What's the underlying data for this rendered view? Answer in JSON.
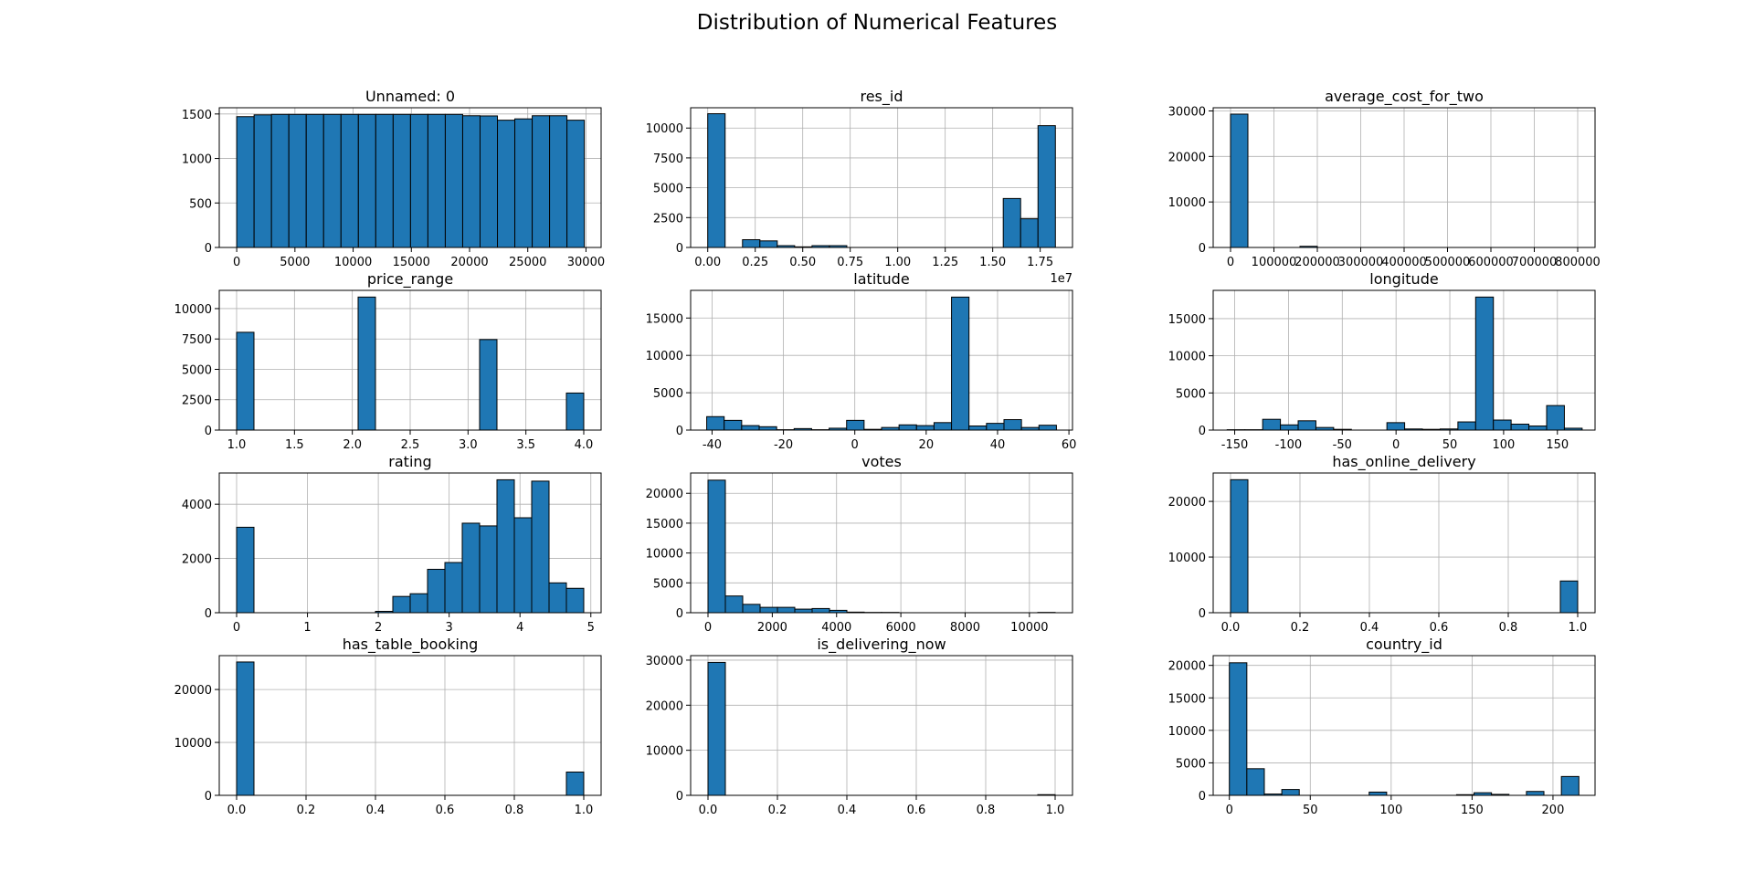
{
  "figure": {
    "title": "Distribution of Numerical Features"
  },
  "style": {
    "bar_fill": "#1f77b4",
    "bar_edge": "#000000",
    "grid": "#b0b0b0"
  },
  "chart_data": [
    {
      "type": "bar",
      "title": "Unnamed: 0",
      "grid": true,
      "xlim": [
        -1500,
        31300
      ],
      "ylim": [
        0,
        1570
      ],
      "xticks": [
        0,
        5000,
        10000,
        15000,
        20000,
        25000,
        30000
      ],
      "yticks": [
        0,
        500,
        1000,
        1500
      ],
      "bins_start": 0,
      "bin_width": 1493,
      "values": [
        1470,
        1490,
        1495,
        1495,
        1495,
        1495,
        1495,
        1495,
        1495,
        1495,
        1495,
        1495,
        1495,
        1480,
        1478,
        1430,
        1445,
        1480,
        1480,
        1430
      ]
    },
    {
      "type": "bar",
      "title": "res_id",
      "grid": true,
      "scale_label": "1e7",
      "xlim": [
        -900000,
        19200000
      ],
      "ylim": [
        0,
        11700
      ],
      "xticks": [
        0,
        2500000,
        5000000,
        7500000,
        10000000,
        12500000,
        15000000,
        17500000
      ],
      "xtick_labels": [
        "0.00",
        "0.25",
        "0.50",
        "0.75",
        "1.00",
        "1.25",
        "1.50",
        "1.75"
      ],
      "yticks": [
        0,
        2500,
        5000,
        7500,
        10000
      ],
      "bins_start": 0,
      "bin_width": 915000,
      "values": [
        11200,
        0,
        650,
        550,
        150,
        50,
        150,
        150,
        0,
        0,
        0,
        0,
        0,
        0,
        0,
        0,
        0,
        4100,
        2400,
        10200
      ]
    },
    {
      "type": "bar",
      "title": "average_cost_for_two",
      "grid": true,
      "xlim": [
        -40000,
        840000
      ],
      "ylim": [
        0,
        30700
      ],
      "xticks": [
        0,
        100000,
        200000,
        300000,
        400000,
        500000,
        600000,
        700000,
        800000
      ],
      "yticks": [
        0,
        10000,
        20000,
        30000
      ],
      "bins_start": 0,
      "bin_width": 40000,
      "values": [
        29300,
        0,
        0,
        0,
        250,
        0,
        0,
        0,
        0,
        0,
        0,
        0,
        0,
        0,
        0,
        0,
        0,
        0,
        0,
        0
      ]
    },
    {
      "type": "bar",
      "title": "price_range",
      "grid": true,
      "xlim": [
        -0.15,
        2.15
      ],
      "xlim_note": "scaled",
      "xlim_data": [
        0.85,
        4.15
      ],
      "ylim": [
        0,
        11500
      ],
      "xticks": [
        1.0,
        1.5,
        2.0,
        2.5,
        3.0,
        3.5,
        4.0
      ],
      "xtick_labels": [
        "1.0",
        "1.5",
        "2.0",
        "2.5",
        "3.0",
        "3.5",
        "4.0"
      ],
      "yticks": [
        0,
        2500,
        5000,
        7500,
        10000
      ],
      "bins_start": 1.0,
      "bin_width": 0.15,
      "values": [
        8050,
        0,
        0,
        0,
        0,
        0,
        0,
        10950,
        0,
        0,
        0,
        0,
        0,
        0,
        7450,
        0,
        0,
        0,
        0,
        3050
      ]
    },
    {
      "type": "bar",
      "title": "latitude",
      "grid": true,
      "xlim": [
        -46,
        61
      ],
      "ylim": [
        0,
        18700
      ],
      "xticks": [
        -40,
        -20,
        0,
        20,
        40,
        60
      ],
      "yticks": [
        0,
        5000,
        10000,
        15000
      ],
      "bins_start": -41.5,
      "bin_width": 4.9,
      "values": [
        1800,
        1300,
        600,
        450,
        50,
        200,
        50,
        250,
        1300,
        100,
        350,
        700,
        600,
        1000,
        17800,
        550,
        900,
        1400,
        350,
        650
      ]
    },
    {
      "type": "bar",
      "title": "longitude",
      "grid": true,
      "xlim": [
        -170,
        185
      ],
      "ylim": [
        0,
        18800
      ],
      "xticks": [
        -150,
        -100,
        -50,
        0,
        50,
        100,
        150
      ],
      "yticks": [
        0,
        5000,
        10000,
        15000
      ],
      "bins_start": -157,
      "bin_width": 16.5,
      "values": [
        50,
        50,
        1450,
        700,
        1250,
        350,
        100,
        0,
        0,
        1000,
        150,
        100,
        150,
        1100,
        17900,
        1350,
        800,
        550,
        3300,
        250
      ]
    },
    {
      "type": "bar",
      "title": "rating",
      "grid": true,
      "xlim": [
        -0.245,
        5.145
      ],
      "ylim": [
        0,
        5150
      ],
      "xticks": [
        0,
        1,
        2,
        3,
        4,
        5
      ],
      "yticks": [
        0,
        2000,
        4000
      ],
      "bins_start": 0,
      "bin_width": 0.245,
      "values": [
        3150,
        0,
        0,
        0,
        0,
        0,
        0,
        0,
        50,
        600,
        700,
        1600,
        1850,
        3300,
        3200,
        4900,
        3500,
        4850,
        1100,
        900
      ]
    },
    {
      "type": "bar",
      "title": "votes",
      "grid": true,
      "xlim": [
        -540,
        11340
      ],
      "ylim": [
        0,
        23400
      ],
      "xticks": [
        0,
        2000,
        4000,
        6000,
        8000,
        10000
      ],
      "yticks": [
        0,
        5000,
        10000,
        15000,
        20000
      ],
      "bins_start": 0,
      "bin_width": 540,
      "values": [
        22200,
        2800,
        1400,
        900,
        900,
        600,
        700,
        400,
        100,
        50,
        50,
        0,
        0,
        0,
        0,
        0,
        0,
        0,
        0,
        50
      ]
    },
    {
      "type": "bar",
      "title": "has_online_delivery",
      "grid": true,
      "xlim": [
        -0.05,
        1.05
      ],
      "ylim": [
        0,
        25100
      ],
      "xticks": [
        0.0,
        0.2,
        0.4,
        0.6,
        0.8,
        1.0
      ],
      "xtick_labels": [
        "0.0",
        "0.2",
        "0.4",
        "0.6",
        "0.8",
        "1.0"
      ],
      "yticks": [
        0,
        10000,
        20000
      ],
      "bins_start": 0,
      "bin_width": 0.05,
      "values": [
        23900,
        0,
        0,
        0,
        0,
        0,
        0,
        0,
        0,
        0,
        0,
        0,
        0,
        0,
        0,
        0,
        0,
        0,
        0,
        5700
      ]
    },
    {
      "type": "bar",
      "title": "has_table_booking",
      "grid": true,
      "xlim": [
        -0.05,
        1.05
      ],
      "ylim": [
        0,
        26400
      ],
      "xticks": [
        0.0,
        0.2,
        0.4,
        0.6,
        0.8,
        1.0
      ],
      "xtick_labels": [
        "0.0",
        "0.2",
        "0.4",
        "0.6",
        "0.8",
        "1.0"
      ],
      "yticks": [
        0,
        10000,
        20000
      ],
      "bins_start": 0,
      "bin_width": 0.05,
      "values": [
        25200,
        0,
        0,
        0,
        0,
        0,
        0,
        0,
        0,
        0,
        0,
        0,
        0,
        0,
        0,
        0,
        0,
        0,
        0,
        4400
      ]
    },
    {
      "type": "bar",
      "title": "is_delivering_now",
      "grid": true,
      "xlim": [
        -0.05,
        1.05
      ],
      "ylim": [
        0,
        31000
      ],
      "xticks": [
        0.0,
        0.2,
        0.4,
        0.6,
        0.8,
        1.0
      ],
      "xtick_labels": [
        "0.0",
        "0.2",
        "0.4",
        "0.6",
        "0.8",
        "1.0"
      ],
      "yticks": [
        0,
        10000,
        20000,
        30000
      ],
      "bins_start": 0,
      "bin_width": 0.05,
      "values": [
        29500,
        0,
        0,
        0,
        0,
        0,
        0,
        0,
        0,
        0,
        0,
        0,
        0,
        0,
        0,
        0,
        0,
        0,
        0,
        150
      ]
    },
    {
      "type": "bar",
      "title": "country_id",
      "grid": true,
      "xlim": [
        -10,
        226
      ],
      "ylim": [
        0,
        21500
      ],
      "xticks": [
        0,
        50,
        100,
        150,
        200
      ],
      "yticks": [
        0,
        5000,
        10000,
        15000,
        20000
      ],
      "bins_start": 0,
      "bin_width": 10.8,
      "values": [
        20400,
        4100,
        200,
        900,
        0,
        0,
        0,
        0,
        500,
        0,
        0,
        0,
        0,
        100,
        400,
        150,
        0,
        600,
        0,
        2900
      ]
    }
  ]
}
